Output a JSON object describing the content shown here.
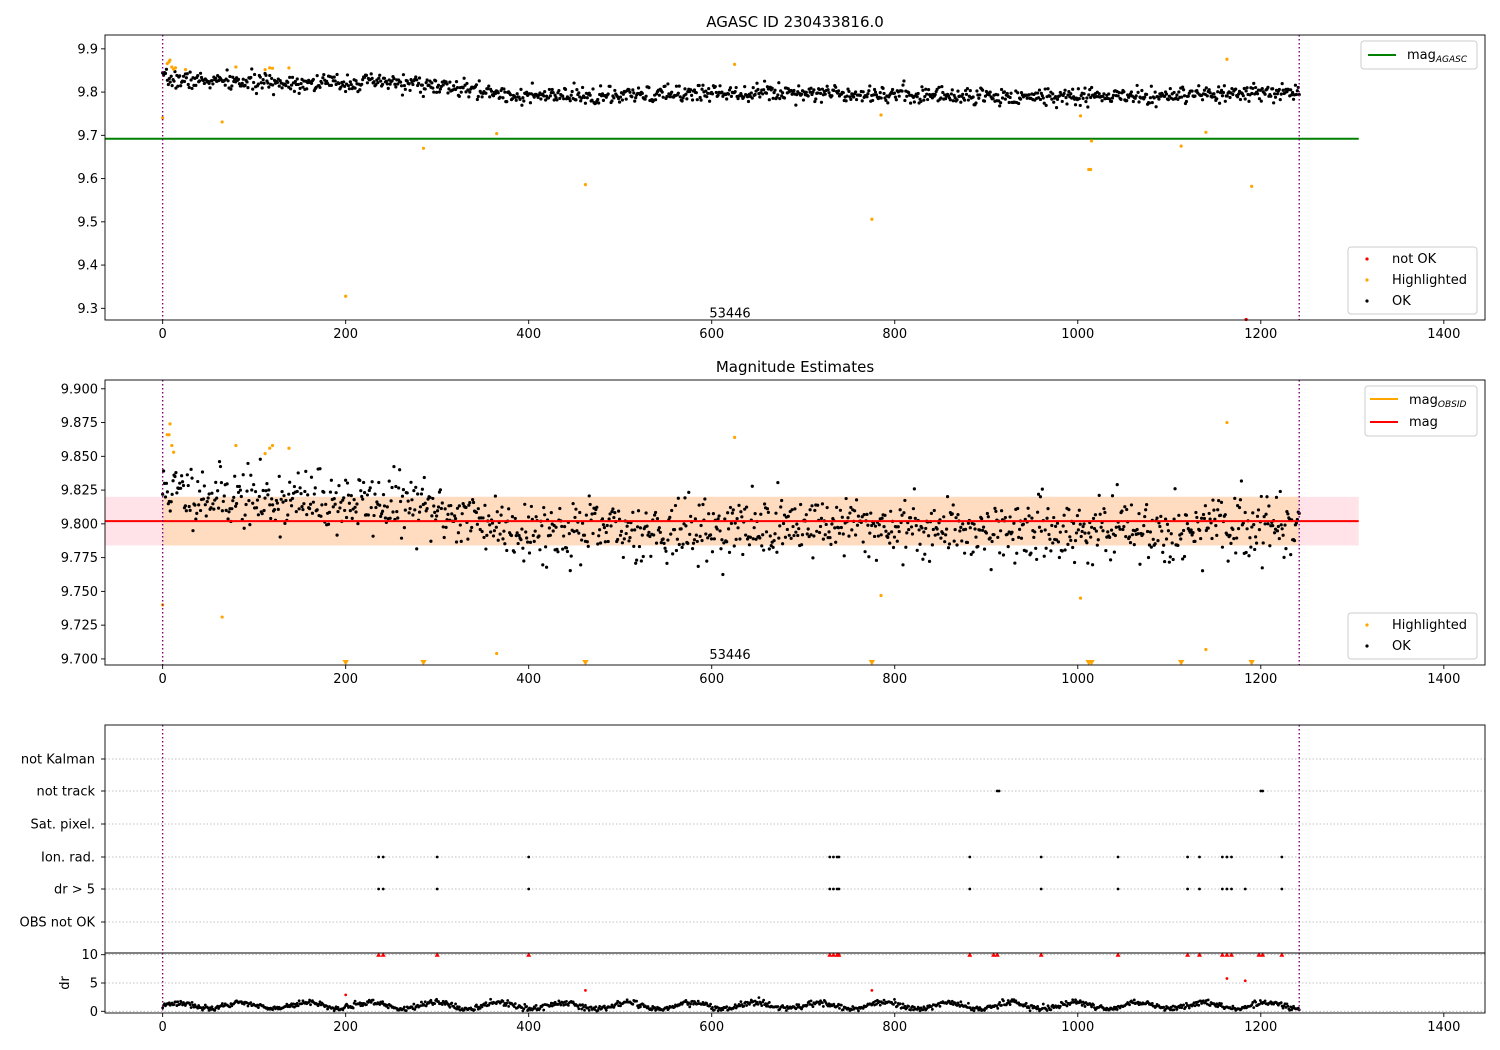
{
  "colors": {
    "ok": "#000000",
    "not_ok": "#ff0000",
    "highlighted": "#ffa500",
    "mag_agasc": "#008000",
    "mag": "#ff0000",
    "mag_obsid": "#ffa500",
    "band_outer": "#ffc0cb",
    "band_inner": "#ffdab9",
    "vline": "#800080",
    "grid": "#b0b0b0"
  },
  "chart_data": [
    {
      "type": "scatter",
      "title": "AGASC ID 230433816.0",
      "xlim": [
        -63,
        1445
      ],
      "ylim": [
        9.273,
        9.932
      ],
      "xticks": [
        0,
        200,
        400,
        600,
        800,
        1000,
        1200,
        1400
      ],
      "yticks": [
        9.3,
        9.4,
        9.5,
        9.6,
        9.7,
        9.8,
        9.9
      ],
      "ytick_labels": [
        "9.3",
        "9.4",
        "9.5",
        "9.6",
        "9.7",
        "9.8",
        "9.9"
      ],
      "vlines": [
        0,
        1242
      ],
      "hline": {
        "name": "mag$_{AGASC}$",
        "label_main": "mag",
        "label_sub": "AGASC",
        "y": 9.692,
        "x": [
          -63,
          1307
        ]
      },
      "annotation": {
        "text": "53446",
        "x": 620,
        "y": 9.29
      },
      "ok_model": {
        "x_range": [
          0,
          1242
        ],
        "n": 1200,
        "seed": 7,
        "points": [
          [
            0,
            9.83
          ],
          [
            100,
            9.822
          ],
          [
            260,
            9.822
          ],
          [
            400,
            9.79
          ],
          [
            500,
            9.79
          ],
          [
            600,
            9.8
          ],
          [
            700,
            9.8
          ],
          [
            900,
            9.79
          ],
          [
            1000,
            9.79
          ],
          [
            1100,
            9.79
          ],
          [
            1242,
            9.8
          ]
        ],
        "spread": 0.01
      },
      "highlighted": [
        [
          0,
          9.74
        ],
        [
          5,
          9.866
        ],
        [
          7,
          9.87
        ],
        [
          8,
          9.874
        ],
        [
          10,
          9.858
        ],
        [
          12,
          9.853
        ],
        [
          14,
          9.856
        ],
        [
          25,
          9.852
        ],
        [
          65,
          9.731
        ],
        [
          80,
          9.858
        ],
        [
          112,
          9.852
        ],
        [
          117,
          9.856
        ],
        [
          120,
          9.855
        ],
        [
          138,
          9.856
        ],
        [
          200,
          9.328
        ],
        [
          285,
          9.67
        ],
        [
          365,
          9.704
        ],
        [
          462,
          9.586
        ],
        [
          625,
          9.864
        ],
        [
          775,
          9.506
        ],
        [
          785,
          9.747
        ],
        [
          1003,
          9.745
        ],
        [
          1012,
          9.621
        ],
        [
          1014,
          9.621
        ],
        [
          1015,
          9.687
        ],
        [
          1113,
          9.675
        ],
        [
          1140,
          9.707
        ],
        [
          1163,
          9.876
        ],
        [
          1190,
          9.582
        ]
      ],
      "not_ok": [
        [
          1184,
          9.27
        ]
      ],
      "legend_top": "top-right",
      "legend_bottom": "lower-right",
      "legend_entries": [
        "not OK",
        "Highlighted",
        "OK"
      ]
    },
    {
      "type": "scatter",
      "title": "Magnitude Estimates",
      "xlim": [
        -63,
        1445
      ],
      "ylim": [
        9.6955,
        9.9065
      ],
      "xticks": [
        0,
        200,
        400,
        600,
        800,
        1000,
        1200,
        1400
      ],
      "yticks": [
        9.7,
        9.725,
        9.75,
        9.775,
        9.8,
        9.825,
        9.85,
        9.875,
        9.9
      ],
      "ytick_labels": [
        "9.700",
        "9.725",
        "9.750",
        "9.775",
        "9.800",
        "9.825",
        "9.850",
        "9.875",
        "9.900"
      ],
      "vlines": [
        0,
        1242
      ],
      "mag_line": {
        "name": "mag",
        "y": 9.802,
        "x": [
          -63,
          1307
        ]
      },
      "mag_obsid": {
        "name": "mag$_{OBSID}$",
        "label_main": "mag",
        "label_sub": "OBSID"
      },
      "band_outer": {
        "y": [
          9.784,
          9.82
        ],
        "x": [
          -63,
          1307
        ]
      },
      "band_inner": {
        "y": [
          9.784,
          9.82
        ],
        "x": [
          0,
          1242
        ]
      },
      "annotation": {
        "text": "53446",
        "x": 620,
        "y": 9.7035
      },
      "ok_model": {
        "x_range": [
          0,
          1242
        ],
        "n": 1200,
        "seed": 11,
        "points": [
          [
            0,
            9.825
          ],
          [
            100,
            9.818
          ],
          [
            260,
            9.815
          ],
          [
            400,
            9.795
          ],
          [
            500,
            9.795
          ],
          [
            600,
            9.795
          ],
          [
            700,
            9.8
          ],
          [
            900,
            9.795
          ],
          [
            1000,
            9.795
          ],
          [
            1100,
            9.795
          ],
          [
            1242,
            9.8
          ]
        ],
        "spread": 0.011
      },
      "highlighted": [
        [
          0,
          9.74
        ],
        [
          5,
          9.866
        ],
        [
          7,
          9.866
        ],
        [
          8,
          9.874
        ],
        [
          10,
          9.858
        ],
        [
          12,
          9.853
        ],
        [
          65,
          9.731
        ],
        [
          80,
          9.858
        ],
        [
          112,
          9.852
        ],
        [
          117,
          9.856
        ],
        [
          120,
          9.858
        ],
        [
          138,
          9.856
        ],
        [
          365,
          9.704
        ],
        [
          625,
          9.864
        ],
        [
          785,
          9.747
        ],
        [
          1003,
          9.745
        ],
        [
          1140,
          9.707
        ],
        [
          1163,
          9.875
        ]
      ],
      "highlighted_offscale_x": [
        200,
        285,
        462,
        775,
        1012,
        1015,
        1113,
        1190
      ],
      "legend_top": "top-right",
      "legend_bottom": "lower-right",
      "legend_entries": [
        "Highlighted",
        "OK"
      ]
    },
    {
      "type": "scatter",
      "title": "",
      "xlim": [
        -63,
        1445
      ],
      "categories": [
        "not Kalman",
        "not track",
        "Sat. pixel.",
        "Ion. rad.",
        "dr > 5",
        "OBS not OK"
      ],
      "vlines": [
        0,
        1242
      ],
      "flags": {
        "not track": [
          912,
          914,
          1200,
          1202
        ],
        "Ion. rad.": [
          236,
          241,
          300,
          400,
          729,
          733,
          737,
          739,
          882,
          960,
          1044,
          1120,
          1133,
          1158,
          1163,
          1168,
          1223
        ],
        "dr > 5": [
          236,
          241,
          300,
          400,
          729,
          733,
          737,
          739,
          882,
          960,
          1044,
          1120,
          1133,
          1158,
          1163,
          1168,
          1183,
          1223
        ]
      }
    },
    {
      "type": "scatter",
      "title": "",
      "ylabel": "dr",
      "xlim": [
        -63,
        1445
      ],
      "ylim": [
        -0.3,
        10.3
      ],
      "xticks": [
        0,
        200,
        400,
        600,
        800,
        1000,
        1200,
        1400
      ],
      "yticks": [
        0,
        5,
        10
      ],
      "ytick_labels": [
        "0",
        "5",
        "10"
      ],
      "vlines": [
        0,
        1242
      ],
      "capped_at": 10,
      "capped_x": [
        236,
        241,
        300,
        400,
        729,
        733,
        737,
        739,
        882,
        908,
        912,
        960,
        1044,
        1120,
        1133,
        1158,
        1163,
        1168,
        1198,
        1202,
        1223
      ],
      "red_points": [
        [
          200,
          2.9
        ],
        [
          462,
          3.7
        ],
        [
          775,
          3.7
        ],
        [
          1163,
          5.8
        ],
        [
          1183,
          5.4
        ]
      ],
      "ok_model": {
        "x_range": [
          0,
          1242
        ],
        "n": 1200,
        "seed": 3,
        "base": 1.0,
        "amp": 0.55,
        "period": 70,
        "spread": 0.25
      }
    }
  ]
}
